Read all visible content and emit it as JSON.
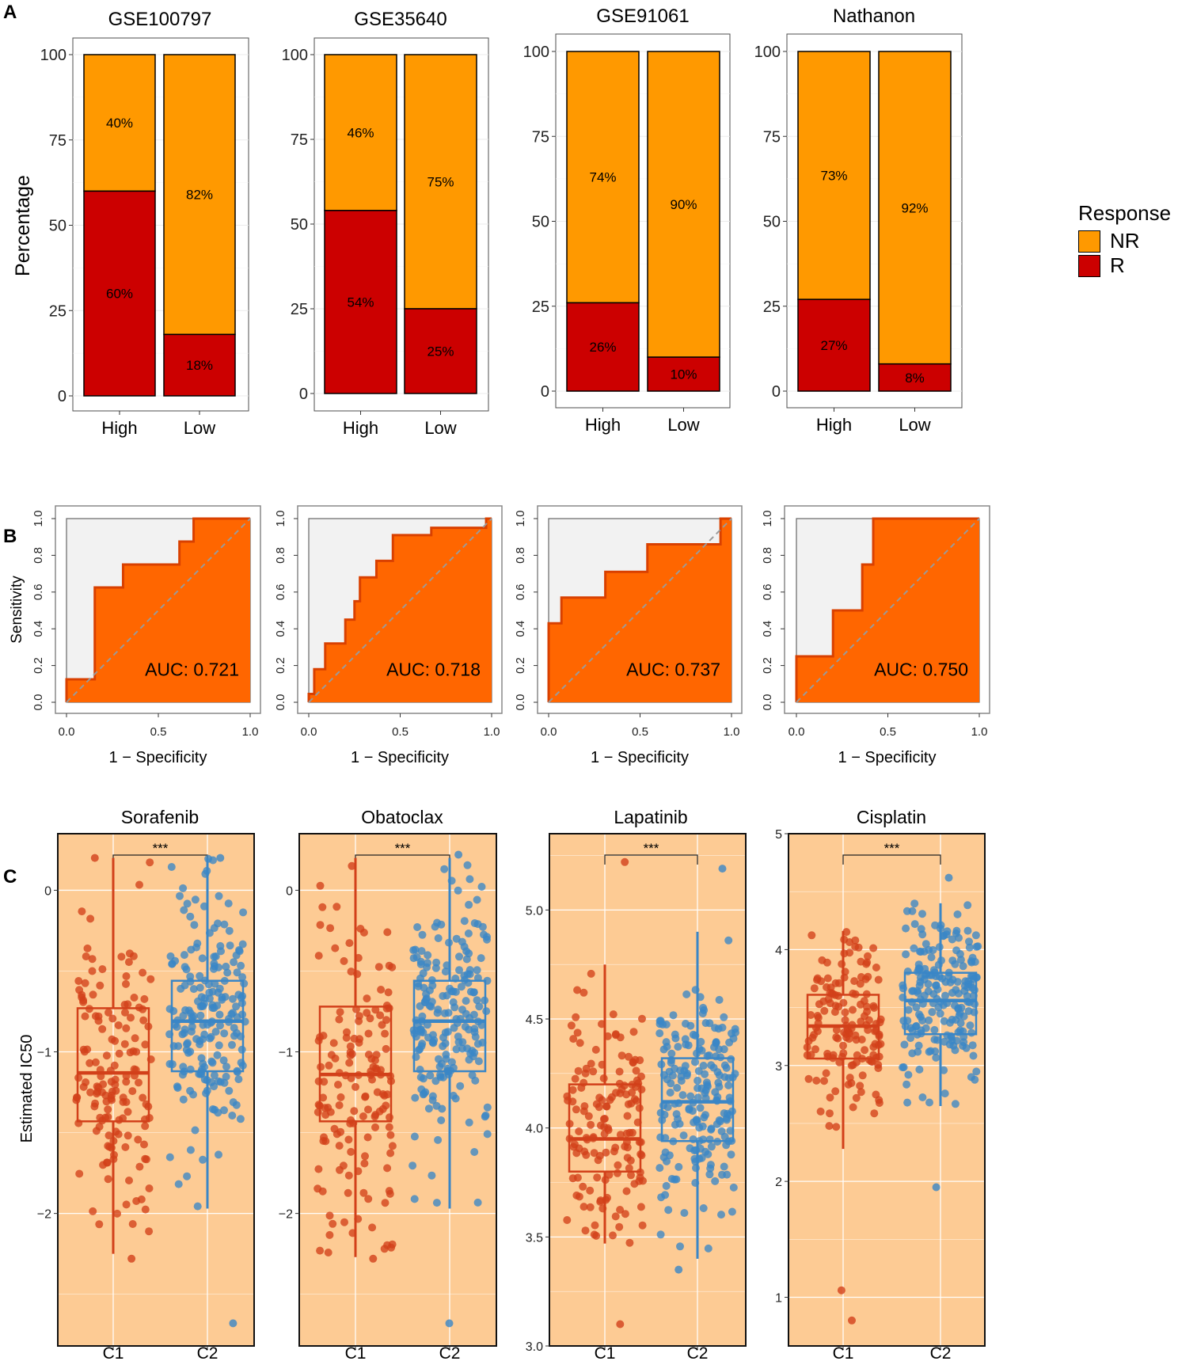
{
  "panels": {
    "a": "A",
    "b": "B",
    "c": "C"
  },
  "legend": {
    "title": "Response",
    "items": [
      {
        "label": "NR",
        "color": "#FF9900"
      },
      {
        "label": "R",
        "color": "#CC0000"
      }
    ]
  },
  "colors": {
    "nr": "#FF9900",
    "r": "#CC0000",
    "roc_fill": "#FF6600",
    "roc_line": "#D94000",
    "roc_bg": "#F2F2F2",
    "box_bg": "#FDCB94",
    "c1": "#D2401A",
    "c2": "#3A86C6"
  },
  "chart_data": [
    {
      "id": "A1",
      "type": "bar",
      "stacked": true,
      "title": "GSE100797",
      "ylabel": "Percentage",
      "ylim": [
        0,
        100
      ],
      "yticks": [
        "0",
        "25",
        "50",
        "75",
        "100"
      ],
      "categories": [
        "High",
        "Low"
      ],
      "series": [
        {
          "name": "R",
          "values": [
            60,
            18
          ],
          "labels": [
            "60%",
            "18%"
          ]
        },
        {
          "name": "NR",
          "values": [
            40,
            82
          ],
          "labels": [
            "40%",
            "82%"
          ]
        }
      ]
    },
    {
      "id": "A2",
      "type": "bar",
      "stacked": true,
      "title": "GSE35640",
      "ylim": [
        0,
        100
      ],
      "yticks": [
        "0",
        "25",
        "50",
        "75",
        "100"
      ],
      "categories": [
        "High",
        "Low"
      ],
      "series": [
        {
          "name": "R",
          "values": [
            54,
            25
          ],
          "labels": [
            "54%",
            "25%"
          ]
        },
        {
          "name": "NR",
          "values": [
            46,
            75
          ],
          "labels": [
            "46%",
            "75%"
          ]
        }
      ]
    },
    {
      "id": "A3",
      "type": "bar",
      "stacked": true,
      "title": "GSE91061",
      "ylim": [
        0,
        100
      ],
      "yticks": [
        "0",
        "25",
        "50",
        "75",
        "100"
      ],
      "categories": [
        "High",
        "Low"
      ],
      "series": [
        {
          "name": "R",
          "values": [
            26,
            10
          ],
          "labels": [
            "26%",
            "10%"
          ]
        },
        {
          "name": "NR",
          "values": [
            74,
            90
          ],
          "labels": [
            "74%",
            "90%"
          ]
        }
      ]
    },
    {
      "id": "A4",
      "type": "bar",
      "stacked": true,
      "title": "Nathanon",
      "ylim": [
        0,
        100
      ],
      "yticks": [
        "0",
        "25",
        "50",
        "75",
        "100"
      ],
      "categories": [
        "High",
        "Low"
      ],
      "series": [
        {
          "name": "R",
          "values": [
            27,
            8
          ],
          "labels": [
            "27%",
            "8%"
          ]
        },
        {
          "name": "NR",
          "values": [
            73,
            92
          ],
          "labels": [
            "73%",
            "92%"
          ]
        }
      ]
    },
    {
      "id": "B1",
      "type": "area",
      "subtype": "roc",
      "xlabel": "1 − Specificity",
      "ylabel": "Sensitivity",
      "xticks": [
        "0.0",
        "0.5",
        "1.0"
      ],
      "yticks": [
        "0.0",
        "0.2",
        "0.4",
        "0.6",
        "0.8",
        "1.0"
      ],
      "auc": "AUC: 0.721",
      "curve": [
        [
          0,
          0
        ],
        [
          0,
          0.125
        ],
        [
          0.154,
          0.125
        ],
        [
          0.154,
          0.625
        ],
        [
          0.308,
          0.625
        ],
        [
          0.308,
          0.75
        ],
        [
          0.615,
          0.75
        ],
        [
          0.615,
          0.875
        ],
        [
          0.692,
          0.875
        ],
        [
          0.692,
          1
        ],
        [
          1,
          1
        ]
      ]
    },
    {
      "id": "B2",
      "type": "area",
      "subtype": "roc",
      "xlabel": "1 − Specificity",
      "xticks": [
        "0.0",
        "0.5",
        "1.0"
      ],
      "yticks": [
        "0.0",
        "0.2",
        "0.4",
        "0.6",
        "0.8",
        "1.0"
      ],
      "auc": "AUC: 0.718",
      "curve": [
        [
          0,
          0
        ],
        [
          0,
          0.045
        ],
        [
          0.03,
          0.045
        ],
        [
          0.03,
          0.18
        ],
        [
          0.09,
          0.18
        ],
        [
          0.09,
          0.32
        ],
        [
          0.2,
          0.32
        ],
        [
          0.2,
          0.45
        ],
        [
          0.25,
          0.45
        ],
        [
          0.25,
          0.55
        ],
        [
          0.28,
          0.55
        ],
        [
          0.28,
          0.68
        ],
        [
          0.37,
          0.68
        ],
        [
          0.37,
          0.77
        ],
        [
          0.46,
          0.77
        ],
        [
          0.46,
          0.91
        ],
        [
          0.67,
          0.91
        ],
        [
          0.67,
          0.95
        ],
        [
          0.97,
          0.95
        ],
        [
          0.97,
          1
        ],
        [
          1,
          1
        ]
      ]
    },
    {
      "id": "B3",
      "type": "area",
      "subtype": "roc",
      "xlabel": "1 − Specificity",
      "xticks": [
        "0.0",
        "0.5",
        "1.0"
      ],
      "yticks": [
        "0.0",
        "0.2",
        "0.4",
        "0.6",
        "0.8",
        "1.0"
      ],
      "auc": "AUC: 0.737",
      "curve": [
        [
          0,
          0
        ],
        [
          0,
          0.43
        ],
        [
          0.07,
          0.43
        ],
        [
          0.07,
          0.57
        ],
        [
          0.31,
          0.57
        ],
        [
          0.31,
          0.71
        ],
        [
          0.54,
          0.71
        ],
        [
          0.54,
          0.86
        ],
        [
          0.94,
          0.86
        ],
        [
          0.94,
          1
        ],
        [
          1,
          1
        ]
      ]
    },
    {
      "id": "B4",
      "type": "area",
      "subtype": "roc",
      "xlabel": "1 − Specificity",
      "xticks": [
        "0.0",
        "0.5",
        "1.0"
      ],
      "yticks": [
        "0.0",
        "0.2",
        "0.4",
        "0.6",
        "0.8",
        "1.0"
      ],
      "auc": "AUC: 0.750",
      "curve": [
        [
          0,
          0
        ],
        [
          0,
          0.25
        ],
        [
          0.2,
          0.25
        ],
        [
          0.2,
          0.5
        ],
        [
          0.36,
          0.5
        ],
        [
          0.36,
          0.75
        ],
        [
          0.42,
          0.75
        ],
        [
          0.42,
          1
        ],
        [
          1,
          1
        ]
      ]
    },
    {
      "id": "C1",
      "type": "scatter",
      "subtype": "boxplot",
      "title": "Sorafenib",
      "ylabel": "Estimated IC50",
      "categories": [
        "C1",
        "C2"
      ],
      "ylim": [
        -2.82,
        0.35
      ],
      "yticks": [
        -2,
        -1,
        0
      ],
      "yticklabels": [
        "−2",
        "−1",
        "0"
      ],
      "significance": "***",
      "n": [
        150,
        200
      ],
      "groups": [
        {
          "min": -2.25,
          "q1": -1.43,
          "median": -1.13,
          "q3": -0.73,
          "max": 0.2,
          "outliers": [
            -2.28,
            0.2
          ]
        },
        {
          "min": -1.97,
          "q1": -1.12,
          "median": -0.81,
          "q3": -0.56,
          "max": 0.2,
          "outliers": [
            -2.68,
            0.2
          ]
        }
      ]
    },
    {
      "id": "C2",
      "type": "scatter",
      "subtype": "boxplot",
      "title": "Obatoclax",
      "categories": [
        "C1",
        "C2"
      ],
      "ylim": [
        -2.82,
        0.35
      ],
      "yticks": [
        -2,
        -1,
        0
      ],
      "yticklabels": [
        "−2",
        "−1",
        "0"
      ],
      "significance": "***",
      "n": [
        150,
        200
      ],
      "groups": [
        {
          "min": -2.27,
          "q1": -1.43,
          "median": -1.14,
          "q3": -0.72,
          "max": 0.2,
          "outliers": [
            -2.28,
            0.15
          ]
        },
        {
          "min": -1.97,
          "q1": -1.12,
          "median": -0.81,
          "q3": -0.56,
          "max": 0.2,
          "outliers": [
            -2.68,
            0.22
          ]
        }
      ]
    },
    {
      "id": "C3",
      "type": "scatter",
      "subtype": "boxplot",
      "title": "Lapatinib",
      "categories": [
        "C1",
        "C2"
      ],
      "ylim": [
        3.0,
        5.35
      ],
      "yticks": [
        3.0,
        3.5,
        4.0,
        4.5,
        5.0
      ],
      "yticklabels": [
        "3.0",
        "3.5",
        "4.0",
        "4.5",
        "5.0"
      ],
      "significance": "***",
      "n": [
        150,
        200
      ],
      "groups": [
        {
          "min": 3.47,
          "q1": 3.8,
          "median": 3.95,
          "q3": 4.2,
          "max": 4.75,
          "outliers": [
            3.1,
            5.22
          ]
        },
        {
          "min": 3.4,
          "q1": 3.94,
          "median": 4.12,
          "q3": 4.32,
          "max": 4.9,
          "outliers": [
            3.35,
            5.19
          ]
        }
      ]
    },
    {
      "id": "C4",
      "type": "scatter",
      "subtype": "boxplot",
      "title": "Cisplatin",
      "categories": [
        "C1",
        "C2"
      ],
      "ylim": [
        0.58,
        5.0
      ],
      "yticks": [
        1,
        2,
        3,
        4,
        5
      ],
      "yticklabels": [
        "1",
        "2",
        "3",
        "4",
        "5"
      ],
      "significance": "***",
      "n": [
        150,
        200
      ],
      "groups": [
        {
          "min": 2.28,
          "q1": 3.06,
          "median": 3.34,
          "q3": 3.61,
          "max": 4.16,
          "outliers": [
            0.8,
            1.06
          ]
        },
        {
          "min": 2.65,
          "q1": 3.27,
          "median": 3.56,
          "q3": 3.8,
          "max": 4.4,
          "outliers": [
            1.95,
            4.62
          ]
        }
      ]
    }
  ]
}
